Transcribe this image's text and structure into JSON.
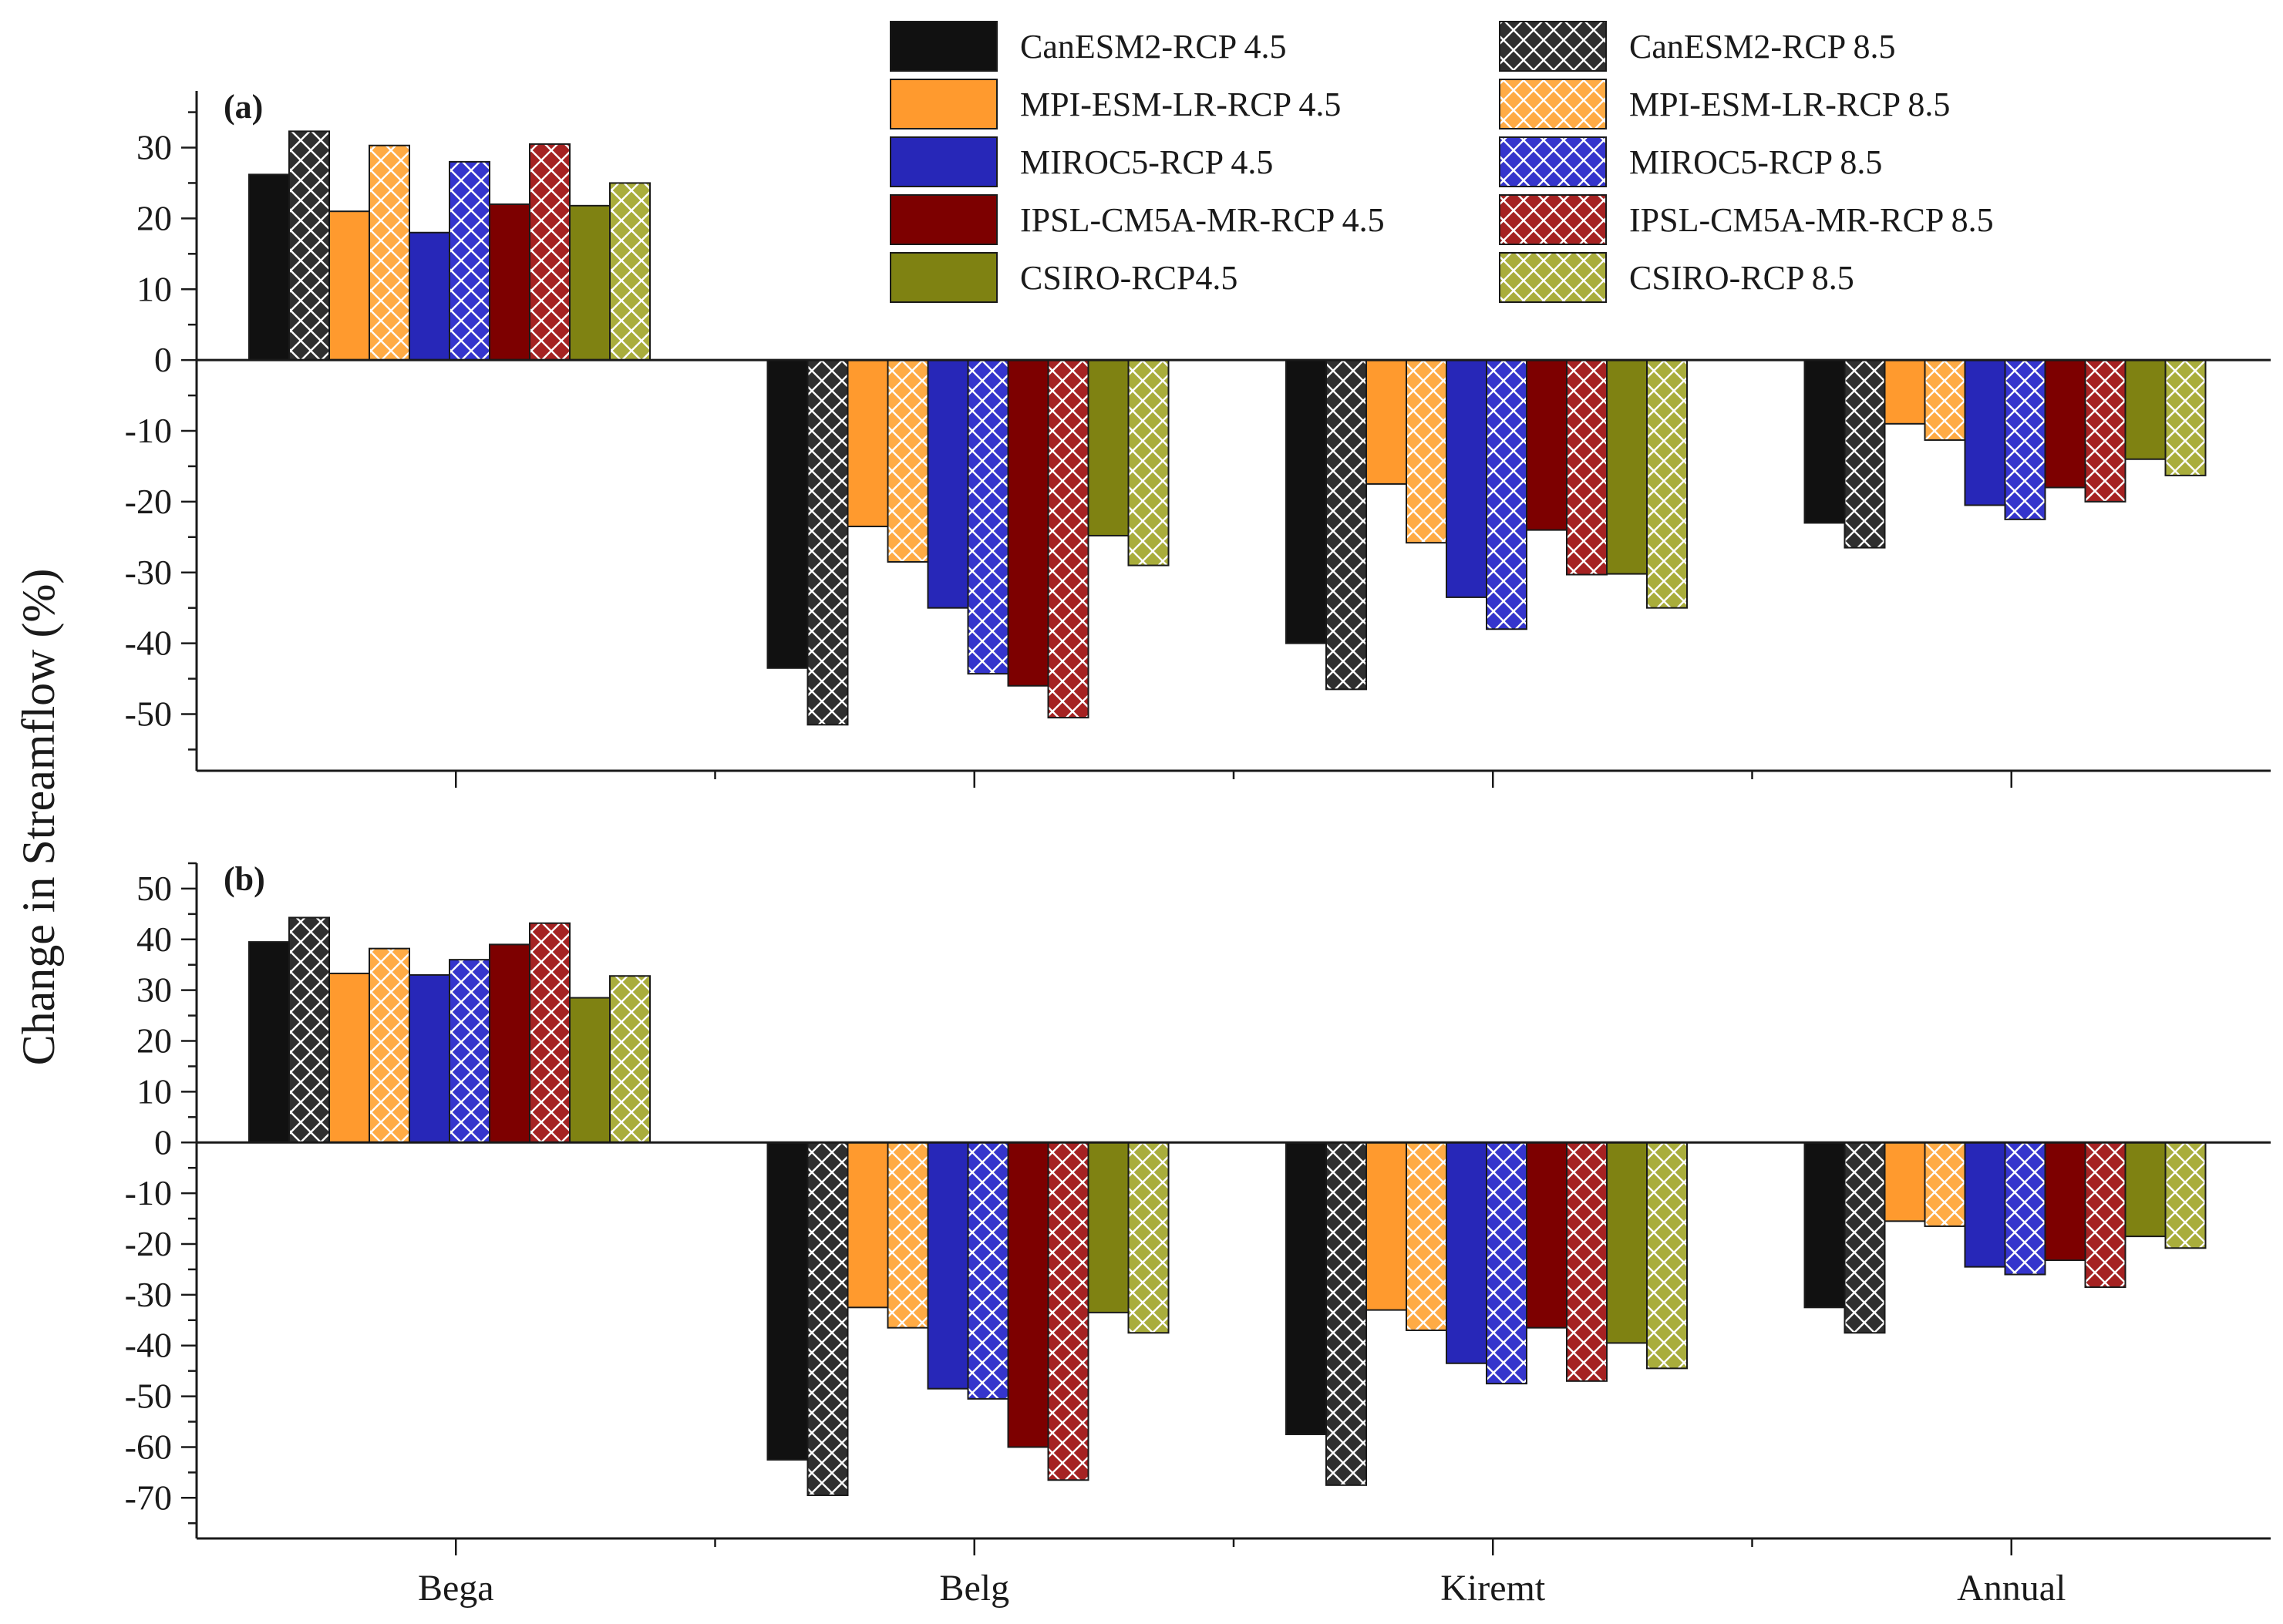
{
  "chart_data": {
    "type": "bar",
    "ylabel": "Change in Streamflow (%)",
    "categories": [
      "Bega",
      "Belg",
      "Kiremt",
      "Annual"
    ],
    "legend": {
      "placement": "top-right",
      "entries": [
        {
          "key": "canesm2_45",
          "label": "CanESM2-RCP 4.5"
        },
        {
          "key": "canesm2_85",
          "label": "CanESM2-RCP 8.5"
        },
        {
          "key": "mpi_45",
          "label": "MPI-ESM-LR-RCP 4.5"
        },
        {
          "key": "mpi_85",
          "label": "MPI-ESM-LR-RCP 8.5"
        },
        {
          "key": "miroc5_45",
          "label": "MIROC5-RCP 4.5"
        },
        {
          "key": "miroc5_85",
          "label": "MIROC5-RCP 8.5"
        },
        {
          "key": "ipsl_45",
          "label": "IPSL-CM5A-MR-RCP 4.5"
        },
        {
          "key": "ipsl_85",
          "label": "IPSL-CM5A-MR-RCP 8.5"
        },
        {
          "key": "csiro_45",
          "label": "CSIRO-RCP4.5"
        },
        {
          "key": "csiro_85",
          "label": "CSIRO-RCP 8.5"
        }
      ]
    },
    "series_styles": [
      {
        "key": "canesm2_45",
        "color": "#111111",
        "hatched": false
      },
      {
        "key": "canesm2_85",
        "color": "#2f2f2f",
        "hatched": true
      },
      {
        "key": "mpi_45",
        "color": "#ff9a2e",
        "hatched": false
      },
      {
        "key": "mpi_85",
        "color": "#ffab45",
        "hatched": true
      },
      {
        "key": "miroc5_45",
        "color": "#2727b8",
        "hatched": false
      },
      {
        "key": "miroc5_85",
        "color": "#3535cc",
        "hatched": true
      },
      {
        "key": "ipsl_45",
        "color": "#7d0000",
        "hatched": false
      },
      {
        "key": "ipsl_85",
        "color": "#a52222",
        "hatched": true
      },
      {
        "key": "csiro_45",
        "color": "#7f8212",
        "hatched": false
      },
      {
        "key": "csiro_85",
        "color": "#a9ad3c",
        "hatched": true
      }
    ],
    "panels": [
      {
        "label": "(a)",
        "ylim": [
          -58,
          38
        ],
        "yticks": [
          30,
          20,
          10,
          0,
          -10,
          -20,
          -30,
          -40,
          -50
        ],
        "series": [
          {
            "key": "canesm2_45",
            "values": [
              26.2,
              -43.5,
              -40.0,
              -23.0
            ]
          },
          {
            "key": "canesm2_85",
            "values": [
              32.3,
              -51.5,
              -46.5,
              -26.5
            ]
          },
          {
            "key": "mpi_45",
            "values": [
              21.0,
              -23.5,
              -17.5,
              -9.0
            ]
          },
          {
            "key": "mpi_85",
            "values": [
              30.3,
              -28.5,
              -25.8,
              -11.3
            ]
          },
          {
            "key": "miroc5_45",
            "values": [
              18.0,
              -35.0,
              -33.5,
              -20.5
            ]
          },
          {
            "key": "miroc5_85",
            "values": [
              28.0,
              -44.3,
              -38.0,
              -22.5
            ]
          },
          {
            "key": "ipsl_45",
            "values": [
              22.0,
              -46.0,
              -24.0,
              -18.0
            ]
          },
          {
            "key": "ipsl_85",
            "values": [
              30.5,
              -50.5,
              -30.3,
              -20.0
            ]
          },
          {
            "key": "csiro_45",
            "values": [
              21.8,
              -24.8,
              -30.2,
              -14.0
            ]
          },
          {
            "key": "csiro_85",
            "values": [
              25.0,
              -29.0,
              -35.0,
              -16.3
            ]
          }
        ]
      },
      {
        "label": "(b)",
        "ylim": [
          -78,
          55
        ],
        "yticks": [
          50,
          40,
          30,
          20,
          10,
          0,
          -10,
          -20,
          -30,
          -40,
          -50,
          -60,
          -70
        ],
        "series": [
          {
            "key": "canesm2_45",
            "values": [
              39.5,
              -62.5,
              -57.5,
              -32.5
            ]
          },
          {
            "key": "canesm2_85",
            "values": [
              44.3,
              -69.5,
              -67.5,
              -37.5
            ]
          },
          {
            "key": "mpi_45",
            "values": [
              33.3,
              -32.5,
              -33.0,
              -15.5
            ]
          },
          {
            "key": "mpi_85",
            "values": [
              38.2,
              -36.5,
              -37.0,
              -16.5
            ]
          },
          {
            "key": "miroc5_45",
            "values": [
              33.0,
              -48.5,
              -43.5,
              -24.5
            ]
          },
          {
            "key": "miroc5_85",
            "values": [
              36.0,
              -50.5,
              -47.5,
              -26.0
            ]
          },
          {
            "key": "ipsl_45",
            "values": [
              39.0,
              -60.0,
              -36.5,
              -23.2
            ]
          },
          {
            "key": "ipsl_85",
            "values": [
              43.2,
              -66.5,
              -47.0,
              -28.5
            ]
          },
          {
            "key": "csiro_45",
            "values": [
              28.5,
              -33.5,
              -39.5,
              -18.5
            ]
          },
          {
            "key": "csiro_85",
            "values": [
              32.8,
              -37.5,
              -44.5,
              -20.8
            ]
          }
        ]
      }
    ]
  }
}
